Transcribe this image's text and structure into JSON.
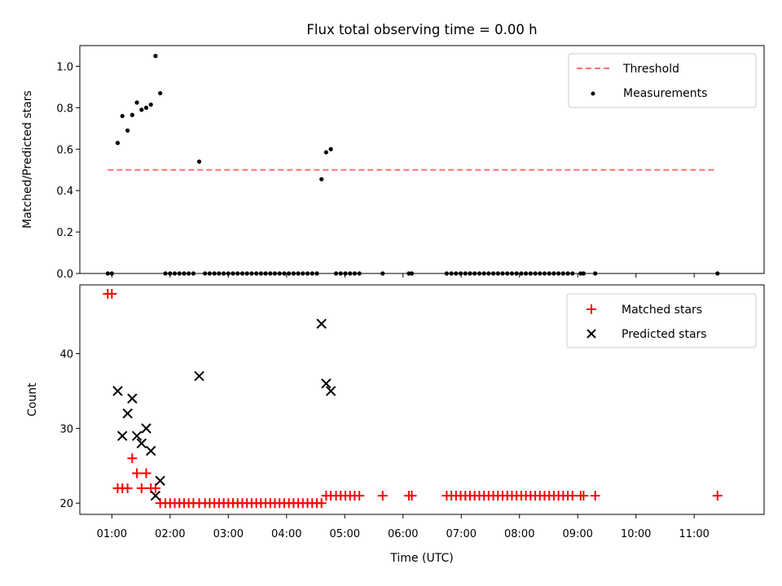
{
  "title": "Flux total observing time = 0.00 h",
  "xlabel": "Time (UTC)",
  "x_tick_labels": [
    "01:00",
    "02:00",
    "03:00",
    "04:00",
    "05:00",
    "06:00",
    "07:00",
    "08:00",
    "09:00",
    "10:00",
    "11:00"
  ],
  "x_ticks": [
    1,
    2,
    3,
    4,
    5,
    6,
    7,
    8,
    9,
    10,
    11
  ],
  "xlim": [
    0.45,
    12.2
  ],
  "colors": {
    "threshold": "#ff7070",
    "measurements": "#000000",
    "matched": "#ff0000",
    "predicted": "#000000"
  },
  "chart_data": [
    {
      "type": "scatter",
      "ylabel": "Matched/Predicted stars",
      "ylim": [
        0,
        1.1
      ],
      "y_ticks": [
        0,
        0.2,
        0.4,
        0.6,
        0.8,
        1.0
      ],
      "y_tick_labels": [
        "0.0",
        "0.2",
        "0.4",
        "0.6",
        "0.8",
        "1.0"
      ],
      "legend_position": "top-right",
      "threshold": {
        "name": "Threshold",
        "y": 0.5,
        "x_range": [
          0.93,
          11.35
        ]
      },
      "measurements": {
        "name": "Measurements",
        "points": [
          [
            0.93,
            0
          ],
          [
            1.0,
            0
          ],
          [
            1.1,
            0.63
          ],
          [
            1.18,
            0.76
          ],
          [
            1.27,
            0.69
          ],
          [
            1.35,
            0.765
          ],
          [
            1.43,
            0.825
          ],
          [
            1.51,
            0.79
          ],
          [
            1.59,
            0.8
          ],
          [
            1.67,
            0.815
          ],
          [
            1.75,
            1.05
          ],
          [
            1.83,
            0.87
          ],
          [
            1.92,
            0
          ],
          [
            2.0,
            0
          ],
          [
            2.08,
            0
          ],
          [
            2.16,
            0
          ],
          [
            2.24,
            0
          ],
          [
            2.32,
            0
          ],
          [
            2.4,
            0
          ],
          [
            2.5,
            0.54
          ],
          [
            2.6,
            0
          ],
          [
            2.68,
            0
          ],
          [
            2.76,
            0
          ],
          [
            2.84,
            0
          ],
          [
            2.92,
            0
          ],
          [
            3.0,
            0
          ],
          [
            3.08,
            0
          ],
          [
            3.16,
            0
          ],
          [
            3.24,
            0
          ],
          [
            3.32,
            0
          ],
          [
            3.4,
            0
          ],
          [
            3.48,
            0
          ],
          [
            3.56,
            0
          ],
          [
            3.64,
            0
          ],
          [
            3.72,
            0
          ],
          [
            3.8,
            0
          ],
          [
            3.88,
            0
          ],
          [
            3.96,
            0
          ],
          [
            4.04,
            0
          ],
          [
            4.12,
            0
          ],
          [
            4.2,
            0
          ],
          [
            4.28,
            0
          ],
          [
            4.36,
            0
          ],
          [
            4.44,
            0
          ],
          [
            4.52,
            0
          ],
          [
            4.6,
            0.455
          ],
          [
            4.68,
            0.585
          ],
          [
            4.76,
            0.6
          ],
          [
            4.85,
            0
          ],
          [
            4.93,
            0
          ],
          [
            5.01,
            0
          ],
          [
            5.09,
            0
          ],
          [
            5.17,
            0
          ],
          [
            5.25,
            0
          ],
          [
            5.65,
            0
          ],
          [
            6.1,
            0
          ],
          [
            6.15,
            0
          ],
          [
            6.75,
            0
          ],
          [
            6.83,
            0
          ],
          [
            6.91,
            0
          ],
          [
            6.99,
            0
          ],
          [
            7.07,
            0
          ],
          [
            7.15,
            0
          ],
          [
            7.23,
            0
          ],
          [
            7.31,
            0
          ],
          [
            7.39,
            0
          ],
          [
            7.47,
            0
          ],
          [
            7.55,
            0
          ],
          [
            7.63,
            0
          ],
          [
            7.71,
            0
          ],
          [
            7.79,
            0
          ],
          [
            7.87,
            0
          ],
          [
            7.95,
            0
          ],
          [
            8.03,
            0
          ],
          [
            8.11,
            0
          ],
          [
            8.19,
            0
          ],
          [
            8.27,
            0
          ],
          [
            8.35,
            0
          ],
          [
            8.43,
            0
          ],
          [
            8.51,
            0
          ],
          [
            8.59,
            0
          ],
          [
            8.67,
            0
          ],
          [
            8.75,
            0
          ],
          [
            8.83,
            0
          ],
          [
            8.91,
            0
          ],
          [
            9.05,
            0
          ],
          [
            9.1,
            0
          ],
          [
            9.3,
            0
          ],
          [
            11.4,
            0
          ]
        ]
      }
    },
    {
      "type": "scatter",
      "ylabel": "Count",
      "ylim": [
        18.5,
        49.2
      ],
      "y_ticks": [
        20,
        30,
        40
      ],
      "y_tick_labels": [
        "20",
        "30",
        "40"
      ],
      "legend_position": "top-right",
      "series": [
        {
          "name": "Matched stars",
          "marker": "plus",
          "points": [
            [
              0.93,
              48
            ],
            [
              1.0,
              48
            ],
            [
              1.1,
              22
            ],
            [
              1.18,
              22
            ],
            [
              1.27,
              22
            ],
            [
              1.35,
              26
            ],
            [
              1.43,
              24
            ],
            [
              1.51,
              22
            ],
            [
              1.59,
              24
            ],
            [
              1.67,
              22
            ],
            [
              1.75,
              22
            ],
            [
              1.83,
              20
            ],
            [
              1.92,
              20
            ],
            [
              2.0,
              20
            ],
            [
              2.08,
              20
            ],
            [
              2.16,
              20
            ],
            [
              2.24,
              20
            ],
            [
              2.32,
              20
            ],
            [
              2.4,
              20
            ],
            [
              2.5,
              20
            ],
            [
              2.6,
              20
            ],
            [
              2.68,
              20
            ],
            [
              2.76,
              20
            ],
            [
              2.84,
              20
            ],
            [
              2.92,
              20
            ],
            [
              3.0,
              20
            ],
            [
              3.08,
              20
            ],
            [
              3.16,
              20
            ],
            [
              3.24,
              20
            ],
            [
              3.32,
              20
            ],
            [
              3.4,
              20
            ],
            [
              3.48,
              20
            ],
            [
              3.56,
              20
            ],
            [
              3.64,
              20
            ],
            [
              3.72,
              20
            ],
            [
              3.8,
              20
            ],
            [
              3.88,
              20
            ],
            [
              3.96,
              20
            ],
            [
              4.04,
              20
            ],
            [
              4.12,
              20
            ],
            [
              4.2,
              20
            ],
            [
              4.28,
              20
            ],
            [
              4.36,
              20
            ],
            [
              4.44,
              20
            ],
            [
              4.52,
              20
            ],
            [
              4.6,
              20
            ],
            [
              4.68,
              21
            ],
            [
              4.76,
              21
            ],
            [
              4.85,
              21
            ],
            [
              4.93,
              21
            ],
            [
              5.01,
              21
            ],
            [
              5.09,
              21
            ],
            [
              5.17,
              21
            ],
            [
              5.25,
              21
            ],
            [
              5.65,
              21
            ],
            [
              6.1,
              21
            ],
            [
              6.15,
              21
            ],
            [
              6.75,
              21
            ],
            [
              6.83,
              21
            ],
            [
              6.91,
              21
            ],
            [
              6.99,
              21
            ],
            [
              7.07,
              21
            ],
            [
              7.15,
              21
            ],
            [
              7.23,
              21
            ],
            [
              7.31,
              21
            ],
            [
              7.39,
              21
            ],
            [
              7.47,
              21
            ],
            [
              7.55,
              21
            ],
            [
              7.63,
              21
            ],
            [
              7.71,
              21
            ],
            [
              7.79,
              21
            ],
            [
              7.87,
              21
            ],
            [
              7.95,
              21
            ],
            [
              8.03,
              21
            ],
            [
              8.11,
              21
            ],
            [
              8.19,
              21
            ],
            [
              8.27,
              21
            ],
            [
              8.35,
              21
            ],
            [
              8.43,
              21
            ],
            [
              8.51,
              21
            ],
            [
              8.59,
              21
            ],
            [
              8.67,
              21
            ],
            [
              8.75,
              21
            ],
            [
              8.83,
              21
            ],
            [
              8.91,
              21
            ],
            [
              9.05,
              21
            ],
            [
              9.1,
              21
            ],
            [
              9.3,
              21
            ],
            [
              11.4,
              21
            ]
          ]
        },
        {
          "name": "Predicted stars",
          "marker": "x",
          "points": [
            [
              1.1,
              35
            ],
            [
              1.18,
              29
            ],
            [
              1.27,
              32
            ],
            [
              1.35,
              34
            ],
            [
              1.43,
              29
            ],
            [
              1.51,
              28
            ],
            [
              1.59,
              30
            ],
            [
              1.67,
              27
            ],
            [
              1.75,
              21
            ],
            [
              1.83,
              23
            ],
            [
              2.5,
              37
            ],
            [
              4.6,
              44
            ],
            [
              4.68,
              36
            ],
            [
              4.76,
              35
            ]
          ]
        }
      ]
    }
  ]
}
